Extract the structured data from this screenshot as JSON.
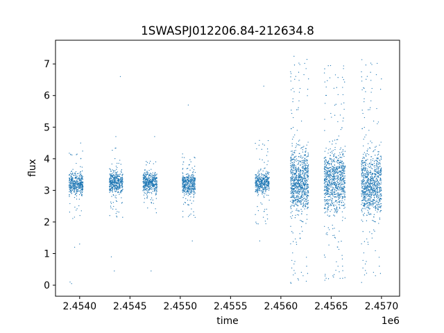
{
  "chart_data": {
    "type": "scatter",
    "title": "1SWASPJ012206.84-212634.8",
    "xlabel": "time",
    "ylabel": "flux",
    "x_offset_label": "1e6",
    "xlim": [
      2453760,
      2457180
    ],
    "ylim": [
      -0.35,
      7.75
    ],
    "x_ticks": [
      2.454,
      2.4545,
      2.455,
      2.4555,
      2.456,
      2.4565,
      2.457
    ],
    "x_tick_labels": [
      "2.4540",
      "2.4545",
      "2.4550",
      "2.4555",
      "2.4560",
      "2.4565",
      "2.4570"
    ],
    "y_ticks": [
      0,
      1,
      2,
      3,
      4,
      5,
      6,
      7
    ],
    "y_tick_labels": [
      "0",
      "1",
      "2",
      "3",
      "4",
      "5",
      "6",
      "7"
    ],
    "grid": false,
    "legend": "none",
    "marker_color": "#1f77b4",
    "series": [
      {
        "segments": [
          {
            "x_start": 2453895,
            "x_end": 2454035,
            "median_flux": 3.2,
            "lo_flux": 2.0,
            "hi_flux": 4.3,
            "outliers": [
              [
                2453905,
                0.1
              ],
              [
                2453920,
                0.05
              ],
              [
                2453950,
                1.2
              ],
              [
                2454000,
                1.3
              ],
              [
                2454010,
                4.5
              ]
            ]
          },
          {
            "x_start": 2454295,
            "x_end": 2454430,
            "median_flux": 3.25,
            "lo_flux": 2.1,
            "hi_flux": 4.4,
            "outliers": [
              [
                2454315,
                0.9
              ],
              [
                2454345,
                0.45
              ],
              [
                2454360,
                4.7
              ],
              [
                2454405,
                6.6
              ]
            ]
          },
          {
            "x_start": 2454630,
            "x_end": 2454770,
            "median_flux": 3.25,
            "lo_flux": 2.2,
            "hi_flux": 4.0,
            "outliers": [
              [
                2454710,
                0.45
              ],
              [
                2454745,
                4.7
              ]
            ]
          },
          {
            "x_start": 2455020,
            "x_end": 2455150,
            "median_flux": 3.2,
            "lo_flux": 2.1,
            "hi_flux": 4.2,
            "outliers": [
              [
                2455080,
                5.7
              ],
              [
                2455120,
                1.4
              ]
            ]
          },
          {
            "x_start": 2455745,
            "x_end": 2455885,
            "median_flux": 3.25,
            "lo_flux": 1.9,
            "hi_flux": 4.6,
            "outliers": [
              [
                2455790,
                1.4
              ],
              [
                2455830,
                6.3
              ]
            ]
          },
          {
            "x_start": 2456095,
            "x_end": 2456275,
            "median_flux": 3.3,
            "lo_flux": 0.0,
            "hi_flux": 7.3,
            "outliers": []
          },
          {
            "x_start": 2456430,
            "x_end": 2456640,
            "median_flux": 3.3,
            "lo_flux": 0.1,
            "hi_flux": 7.0,
            "outliers": []
          },
          {
            "x_start": 2456800,
            "x_end": 2457000,
            "median_flux": 3.2,
            "lo_flux": 0.0,
            "hi_flux": 7.3,
            "outliers": []
          }
        ]
      }
    ]
  }
}
